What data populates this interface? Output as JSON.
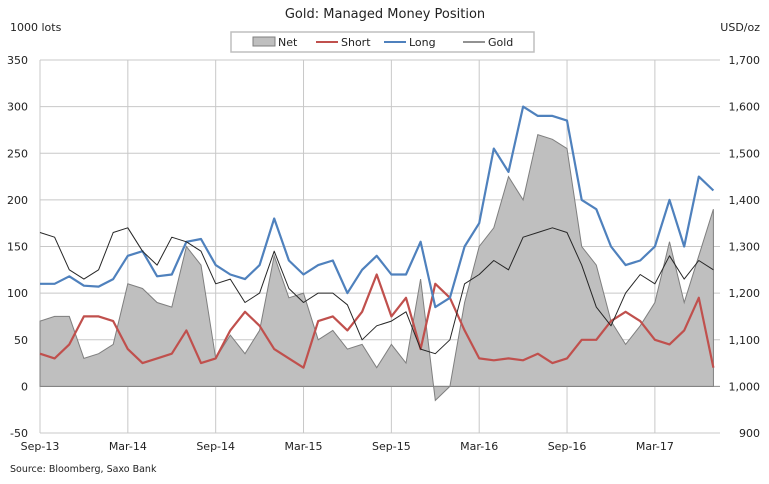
{
  "chart_data": {
    "type": "line",
    "title": "Gold:  Managed Money Position",
    "ylabel_left": "1000 lots",
    "ylabel_right": "USD/oz",
    "source": "Source: Bloomberg, Saxo Bank",
    "ylim_left": [
      -50,
      350
    ],
    "ylim_right": [
      900,
      1700
    ],
    "yticks_left": [
      "-50",
      "0",
      "50",
      "100",
      "150",
      "200",
      "250",
      "300",
      "350"
    ],
    "yticks_right": [
      "900",
      "1,000",
      "1,100",
      "1,200",
      "1,300",
      "1,400",
      "1,500",
      "1,600",
      "1,700"
    ],
    "xticks": [
      "Sep-13",
      "Mar-14",
      "Sep-14",
      "Mar-15",
      "Sep-15",
      "Mar-16",
      "Sep-16",
      "Mar-17"
    ],
    "grid": true,
    "legend_position": "top-center",
    "x": [
      "2013-09",
      "2013-10",
      "2013-11",
      "2013-12",
      "2014-01",
      "2014-02",
      "2014-03",
      "2014-04",
      "2014-05",
      "2014-06",
      "2014-07",
      "2014-08",
      "2014-09",
      "2014-10",
      "2014-11",
      "2014-12",
      "2015-01",
      "2015-02",
      "2015-03",
      "2015-04",
      "2015-05",
      "2015-06",
      "2015-07",
      "2015-08",
      "2015-09",
      "2015-10",
      "2015-11",
      "2015-12",
      "2016-01",
      "2016-02",
      "2016-03",
      "2016-04",
      "2016-05",
      "2016-06",
      "2016-07",
      "2016-08",
      "2016-09",
      "2016-10",
      "2016-11",
      "2016-12",
      "2017-01",
      "2017-02",
      "2017-03",
      "2017-04",
      "2017-05",
      "2017-06",
      "2017-07"
    ],
    "series": [
      {
        "name": "Net",
        "type": "area",
        "axis": "left",
        "color": "#bfbfbf",
        "values": [
          70,
          75,
          75,
          30,
          35,
          45,
          110,
          105,
          90,
          85,
          150,
          130,
          30,
          55,
          35,
          60,
          140,
          95,
          100,
          50,
          60,
          40,
          45,
          20,
          45,
          25,
          115,
          -15,
          0,
          90,
          150,
          170,
          225,
          200,
          270,
          265,
          255,
          150,
          130,
          70,
          45,
          65,
          90,
          155,
          90,
          140,
          190
        ]
      },
      {
        "name": "Short",
        "type": "line",
        "axis": "left",
        "color": "#c0504d",
        "values": [
          35,
          30,
          45,
          75,
          75,
          70,
          40,
          25,
          30,
          35,
          60,
          25,
          30,
          60,
          80,
          65,
          40,
          30,
          20,
          70,
          75,
          60,
          80,
          120,
          75,
          95,
          40,
          110,
          95,
          60,
          30,
          28,
          30,
          28,
          35,
          25,
          30,
          50,
          50,
          70,
          80,
          70,
          50,
          45,
          60,
          95,
          20
        ]
      },
      {
        "name": "Long",
        "type": "line",
        "axis": "left",
        "color": "#4f81bd",
        "values": [
          110,
          110,
          118,
          108,
          107,
          115,
          140,
          145,
          118,
          120,
          155,
          158,
          130,
          120,
          115,
          130,
          180,
          135,
          120,
          130,
          135,
          100,
          125,
          140,
          120,
          120,
          155,
          85,
          95,
          150,
          175,
          255,
          230,
          300,
          290,
          290,
          285,
          200,
          190,
          150,
          130,
          135,
          150,
          200,
          150,
          225,
          210
        ]
      },
      {
        "name": "Gold",
        "type": "line",
        "axis": "right",
        "color": "#262626",
        "values": [
          1330,
          1320,
          1250,
          1230,
          1250,
          1330,
          1340,
          1290,
          1260,
          1320,
          1310,
          1290,
          1220,
          1230,
          1180,
          1200,
          1290,
          1210,
          1180,
          1200,
          1200,
          1175,
          1100,
          1130,
          1140,
          1160,
          1080,
          1070,
          1100,
          1220,
          1240,
          1270,
          1250,
          1320,
          1330,
          1340,
          1330,
          1260,
          1170,
          1130,
          1200,
          1240,
          1220,
          1280,
          1230,
          1270,
          1250
        ]
      }
    ]
  }
}
